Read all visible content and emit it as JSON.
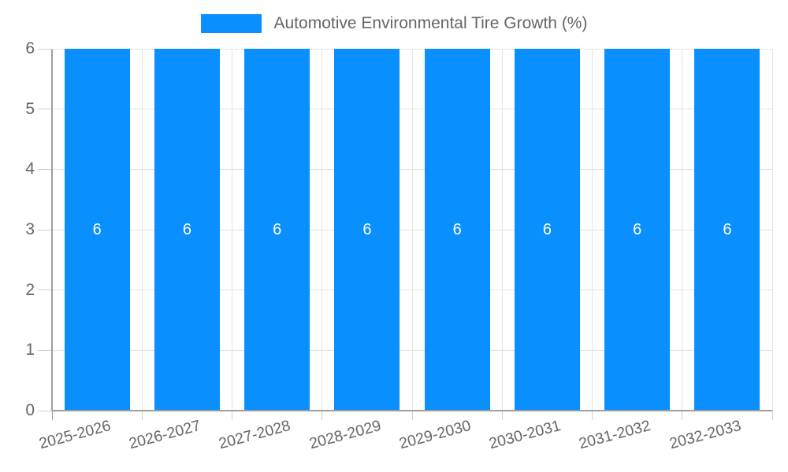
{
  "chart_data": {
    "type": "bar",
    "title": "Automotive Environmental Tire Growth (%)",
    "categories": [
      "2025-2026",
      "2026-2027",
      "2027-2028",
      "2028-2029",
      "2029-2030",
      "2030-2031",
      "2031-2032",
      "2032-2033"
    ],
    "values": [
      6,
      6,
      6,
      6,
      6,
      6,
      6,
      6
    ],
    "bar_labels": [
      "6",
      "6",
      "6",
      "6",
      "6",
      "6",
      "6",
      "6"
    ],
    "xlabel": "",
    "ylabel": "",
    "ylim": [
      0,
      6
    ],
    "yticks": [
      0,
      1,
      2,
      3,
      4,
      5,
      6
    ],
    "grid": true,
    "legend_position": "top",
    "colors": {
      "bar": "#0a8fff",
      "grid": "#e3e3e3",
      "axis": "#9e9e9e",
      "tick": "#cfcfcf",
      "label": "#666666",
      "bar_label": "#ffffff"
    }
  }
}
